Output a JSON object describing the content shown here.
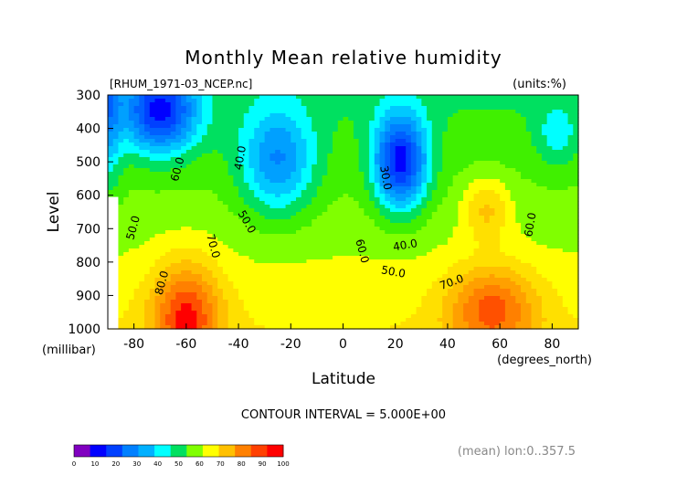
{
  "chart_data": {
    "type": "contour",
    "title": "Monthly Mean relative humidity",
    "source_label": "[RHUM_1971-03_NCEP.nc]",
    "units_label": "(units:%)",
    "ylabel": "Level",
    "yunit_label": "(millibar)",
    "xlabel": "Latitude",
    "xunit_label": "(degrees_north)",
    "contour_interval_label": "CONTOUR INTERVAL = 5.000E+00",
    "mean_label": "(mean) lon:0..357.5",
    "xlim": [
      -90,
      90
    ],
    "ylim": [
      1000,
      300
    ],
    "x_ticks": [
      -80,
      -60,
      -40,
      -20,
      0,
      20,
      40,
      60,
      80
    ],
    "y_ticks": [
      300,
      400,
      500,
      600,
      700,
      800,
      900,
      1000
    ],
    "colorbar_ticks": [
      0,
      10,
      20,
      30,
      40,
      50,
      60,
      70,
      80,
      90,
      100
    ],
    "colorbar_colors": [
      "#8000c0",
      "#0000ff",
      "#0040ff",
      "#0080ff",
      "#00b0ff",
      "#00ffff",
      "#00e060",
      "#80ff00",
      "#ffff00",
      "#ffc000",
      "#ff8000",
      "#ff4000",
      "#ff0000"
    ],
    "contour_labels": [
      {
        "text": "40.0",
        "lat": -38,
        "level": 490,
        "rotate": -80
      },
      {
        "text": "60.0",
        "lat": -62,
        "level": 525,
        "rotate": -75
      },
      {
        "text": "50.0",
        "lat": -38,
        "level": 685,
        "rotate": 60
      },
      {
        "text": "50.0",
        "lat": -79,
        "level": 700,
        "rotate": -75
      },
      {
        "text": "70.0",
        "lat": -51,
        "level": 755,
        "rotate": 75
      },
      {
        "text": "80.0",
        "lat": -68,
        "level": 865,
        "rotate": -75
      },
      {
        "text": "30.0",
        "lat": 15,
        "level": 550,
        "rotate": 80
      },
      {
        "text": "40.0",
        "lat": 24,
        "level": 760,
        "rotate": -10
      },
      {
        "text": "60.0",
        "lat": 6,
        "level": 770,
        "rotate": 75
      },
      {
        "text": "50.0",
        "lat": 19,
        "level": 840,
        "rotate": 10
      },
      {
        "text": "70.0",
        "lat": 42,
        "level": 870,
        "rotate": -20
      },
      {
        "text": "60.0",
        "lat": 73,
        "level": 690,
        "rotate": -80
      }
    ]
  }
}
